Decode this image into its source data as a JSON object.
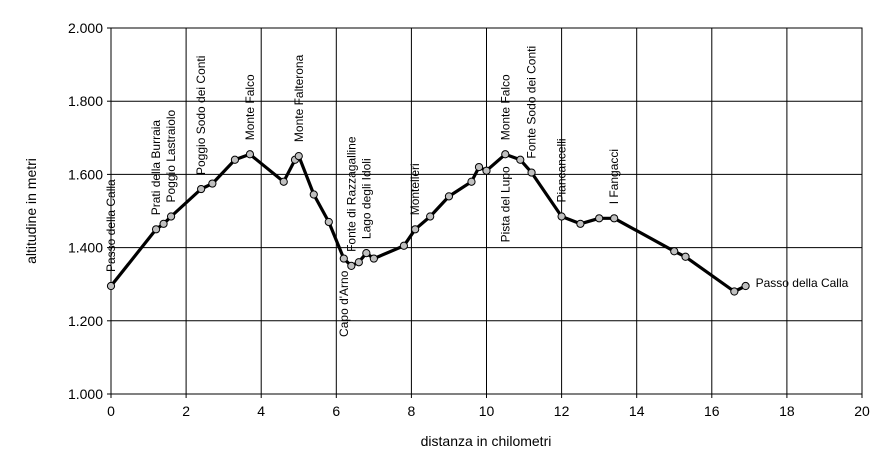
{
  "chart_data": {
    "type": "line",
    "title": "",
    "xlabel": "distanza in chilometri",
    "ylabel": "altitudine  in metri",
    "xlim": [
      0,
      20
    ],
    "ylim": [
      1000,
      2000
    ],
    "x_ticks": [
      0,
      2,
      4,
      6,
      8,
      10,
      12,
      14,
      16,
      18,
      20
    ],
    "x_tick_labels": [
      "0",
      "2",
      "4",
      "6",
      "8",
      "10",
      "12",
      "14",
      "16",
      "18",
      "20"
    ],
    "y_ticks": [
      1000,
      1200,
      1400,
      1600,
      1800,
      2000
    ],
    "y_tick_labels": [
      "1.000",
      "1.200",
      "1.400",
      "1.600",
      "1.800",
      "2.000"
    ],
    "grid": true,
    "legend": "none",
    "line_color": "#000000",
    "marker_fill": "#c0c0c0",
    "series": [
      {
        "x": [
          0.0,
          1.2,
          1.4,
          1.6,
          2.4,
          2.7,
          3.3,
          3.7,
          4.6,
          4.9,
          5.0,
          5.4,
          5.8,
          6.2,
          6.4,
          6.6,
          6.8,
          7.0,
          7.8,
          8.1,
          8.5,
          9.0,
          9.6,
          9.8,
          10.0,
          10.5,
          10.9,
          11.2,
          12.0,
          12.5,
          13.0,
          13.4,
          15.0,
          15.3,
          16.6,
          16.9
        ],
        "y": [
          1295,
          1450,
          1465,
          1485,
          1560,
          1575,
          1640,
          1655,
          1580,
          1640,
          1650,
          1545,
          1470,
          1370,
          1350,
          1360,
          1385,
          1370,
          1405,
          1450,
          1485,
          1540,
          1580,
          1620,
          1610,
          1655,
          1640,
          1605,
          1485,
          1465,
          1480,
          1480,
          1390,
          1375,
          1280,
          1295
        ]
      }
    ],
    "annotations": [
      {
        "text": "Passo della Calla",
        "x": 0.0,
        "y": 1295,
        "side": "above"
      },
      {
        "text": "Prati della Burraia",
        "x": 1.2,
        "y": 1450,
        "side": "above"
      },
      {
        "text": "Poggio Lastraiolo",
        "x": 1.6,
        "y": 1485,
        "side": "above"
      },
      {
        "text": "Poggio Sodo dei Conti",
        "x": 2.4,
        "y": 1560,
        "side": "above"
      },
      {
        "text": "Monte Falco",
        "x": 3.7,
        "y": 1655,
        "side": "above"
      },
      {
        "text": "Monte Falterona",
        "x": 5.0,
        "y": 1650,
        "side": "above"
      },
      {
        "text": "Capo d'Arno",
        "x": 6.2,
        "y": 1370,
        "side": "below"
      },
      {
        "text": "Fonte di Razzagalline",
        "x": 6.4,
        "y": 1350,
        "side": "above"
      },
      {
        "text": "Lago degli Idoli",
        "x": 6.8,
        "y": 1385,
        "side": "above"
      },
      {
        "text": "Montelleri",
        "x": 8.1,
        "y": 1450,
        "side": "above"
      },
      {
        "text": "Pista del Lupo",
        "x": 10.5,
        "y": 1655,
        "side": "below"
      },
      {
        "text": "Monte Falco",
        "x": 10.5,
        "y": 1655,
        "side": "above"
      },
      {
        "text": "Fonte Sodo dei Conti",
        "x": 11.2,
        "y": 1605,
        "side": "above"
      },
      {
        "text": "Piancancelli",
        "x": 12.0,
        "y": 1485,
        "side": "above"
      },
      {
        "text": "I Fangacci",
        "x": 13.4,
        "y": 1480,
        "side": "above"
      },
      {
        "text": "Passo della Calla",
        "x": 16.9,
        "y": 1295,
        "side": "right"
      }
    ]
  }
}
